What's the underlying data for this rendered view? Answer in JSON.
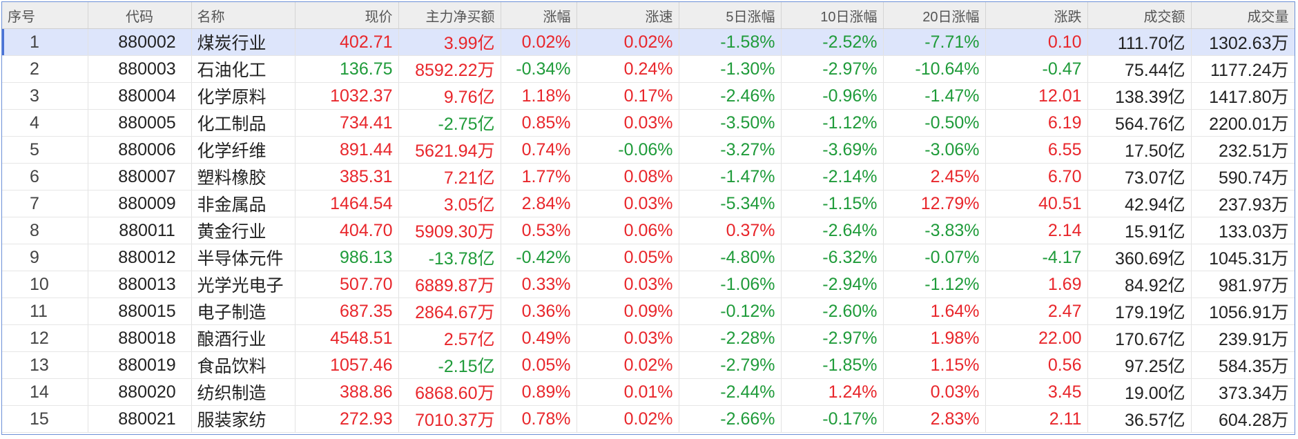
{
  "colors": {
    "up": "#e8262b",
    "down": "#1f9b3a",
    "header_bg": "#eeeeee",
    "selected_row_bg": "#dde5fb",
    "frame_border": "#6b8fd6"
  },
  "table": {
    "headers": [
      "序号",
      "代码",
      "名称",
      "现价",
      "主力净买额",
      "涨幅",
      "涨速",
      "5日涨幅",
      "10日涨幅",
      "20日涨幅",
      "涨跌",
      "成交额",
      "成交量"
    ],
    "selected_row": 0,
    "rows": [
      {
        "cells": [
          "1",
          "880002",
          "煤炭行业",
          "402.71",
          "3.99亿",
          "0.02%",
          "0.02%",
          "-1.58%",
          "-2.52%",
          "-7.71%",
          "0.10",
          "111.70亿",
          "1302.63万"
        ],
        "dirs": [
          "n",
          "n",
          "n",
          "up",
          "up",
          "up",
          "up",
          "down",
          "down",
          "down",
          "up",
          "n",
          "n"
        ]
      },
      {
        "cells": [
          "2",
          "880003",
          "石油化工",
          "136.75",
          "8592.22万",
          "-0.34%",
          "0.24%",
          "-1.30%",
          "-2.97%",
          "-10.64%",
          "-0.47",
          "75.44亿",
          "1177.24万"
        ],
        "dirs": [
          "n",
          "n",
          "n",
          "down",
          "up",
          "down",
          "up",
          "down",
          "down",
          "down",
          "down",
          "n",
          "n"
        ]
      },
      {
        "cells": [
          "3",
          "880004",
          "化学原料",
          "1032.37",
          "9.76亿",
          "1.18%",
          "0.17%",
          "-2.46%",
          "-0.96%",
          "-1.47%",
          "12.01",
          "138.39亿",
          "1417.80万"
        ],
        "dirs": [
          "n",
          "n",
          "n",
          "up",
          "up",
          "up",
          "up",
          "down",
          "down",
          "down",
          "up",
          "n",
          "n"
        ]
      },
      {
        "cells": [
          "4",
          "880005",
          "化工制品",
          "734.41",
          "-2.75亿",
          "0.85%",
          "0.03%",
          "-3.50%",
          "-1.12%",
          "-0.50%",
          "6.19",
          "564.76亿",
          "2200.01万"
        ],
        "dirs": [
          "n",
          "n",
          "n",
          "up",
          "down",
          "up",
          "up",
          "down",
          "down",
          "down",
          "up",
          "n",
          "n"
        ]
      },
      {
        "cells": [
          "5",
          "880006",
          "化学纤维",
          "891.44",
          "5621.94万",
          "0.74%",
          "-0.06%",
          "-3.27%",
          "-3.69%",
          "-3.06%",
          "6.55",
          "17.50亿",
          "232.51万"
        ],
        "dirs": [
          "n",
          "n",
          "n",
          "up",
          "up",
          "up",
          "down",
          "down",
          "down",
          "down",
          "up",
          "n",
          "n"
        ]
      },
      {
        "cells": [
          "6",
          "880007",
          "塑料橡胶",
          "385.31",
          "7.21亿",
          "1.77%",
          "0.08%",
          "-1.47%",
          "-2.14%",
          "2.45%",
          "6.70",
          "73.07亿",
          "590.74万"
        ],
        "dirs": [
          "n",
          "n",
          "n",
          "up",
          "up",
          "up",
          "up",
          "down",
          "down",
          "up",
          "up",
          "n",
          "n"
        ]
      },
      {
        "cells": [
          "7",
          "880009",
          "非金属品",
          "1464.54",
          "3.05亿",
          "2.84%",
          "0.03%",
          "-5.34%",
          "-1.15%",
          "12.79%",
          "40.51",
          "42.94亿",
          "237.93万"
        ],
        "dirs": [
          "n",
          "n",
          "n",
          "up",
          "up",
          "up",
          "up",
          "down",
          "down",
          "up",
          "up",
          "n",
          "n"
        ]
      },
      {
        "cells": [
          "8",
          "880011",
          "黄金行业",
          "404.70",
          "5909.30万",
          "0.53%",
          "0.06%",
          "0.37%",
          "-2.64%",
          "-3.83%",
          "2.14",
          "15.91亿",
          "133.03万"
        ],
        "dirs": [
          "n",
          "n",
          "n",
          "up",
          "up",
          "up",
          "up",
          "up",
          "down",
          "down",
          "up",
          "n",
          "n"
        ]
      },
      {
        "cells": [
          "9",
          "880012",
          "半导体元件",
          "986.13",
          "-13.78亿",
          "-0.42%",
          "0.05%",
          "-4.80%",
          "-6.32%",
          "-0.07%",
          "-4.17",
          "360.69亿",
          "1045.31万"
        ],
        "dirs": [
          "n",
          "n",
          "n",
          "down",
          "down",
          "down",
          "up",
          "down",
          "down",
          "down",
          "down",
          "n",
          "n"
        ]
      },
      {
        "cells": [
          "10",
          "880013",
          "光学光电子",
          "507.70",
          "6889.87万",
          "0.33%",
          "0.03%",
          "-1.06%",
          "-2.94%",
          "-1.12%",
          "1.69",
          "84.92亿",
          "981.97万"
        ],
        "dirs": [
          "n",
          "n",
          "n",
          "up",
          "up",
          "up",
          "up",
          "down",
          "down",
          "down",
          "up",
          "n",
          "n"
        ]
      },
      {
        "cells": [
          "11",
          "880015",
          "电子制造",
          "687.35",
          "2864.67万",
          "0.36%",
          "0.09%",
          "-0.12%",
          "-2.60%",
          "1.64%",
          "2.47",
          "179.19亿",
          "1056.91万"
        ],
        "dirs": [
          "n",
          "n",
          "n",
          "up",
          "up",
          "up",
          "up",
          "down",
          "down",
          "up",
          "up",
          "n",
          "n"
        ]
      },
      {
        "cells": [
          "12",
          "880018",
          "酿酒行业",
          "4548.51",
          "2.57亿",
          "0.49%",
          "0.03%",
          "-2.28%",
          "-2.97%",
          "1.98%",
          "22.00",
          "170.67亿",
          "239.91万"
        ],
        "dirs": [
          "n",
          "n",
          "n",
          "up",
          "up",
          "up",
          "up",
          "down",
          "down",
          "up",
          "up",
          "n",
          "n"
        ]
      },
      {
        "cells": [
          "13",
          "880019",
          "食品饮料",
          "1057.46",
          "-2.15亿",
          "0.05%",
          "0.02%",
          "-2.79%",
          "-1.85%",
          "1.15%",
          "0.56",
          "97.25亿",
          "584.35万"
        ],
        "dirs": [
          "n",
          "n",
          "n",
          "up",
          "down",
          "up",
          "up",
          "down",
          "down",
          "up",
          "up",
          "n",
          "n"
        ]
      },
      {
        "cells": [
          "14",
          "880020",
          "纺织制造",
          "388.86",
          "6868.60万",
          "0.89%",
          "0.01%",
          "-2.44%",
          "1.24%",
          "0.03%",
          "3.45",
          "19.00亿",
          "373.34万"
        ],
        "dirs": [
          "n",
          "n",
          "n",
          "up",
          "up",
          "up",
          "up",
          "down",
          "up",
          "up",
          "up",
          "n",
          "n"
        ]
      },
      {
        "cells": [
          "15",
          "880021",
          "服装家纺",
          "272.93",
          "7010.37万",
          "0.78%",
          "0.02%",
          "-2.66%",
          "-0.17%",
          "2.83%",
          "2.11",
          "36.57亿",
          "604.28万"
        ],
        "dirs": [
          "n",
          "n",
          "n",
          "up",
          "up",
          "up",
          "up",
          "down",
          "down",
          "up",
          "up",
          "n",
          "n"
        ]
      }
    ]
  }
}
